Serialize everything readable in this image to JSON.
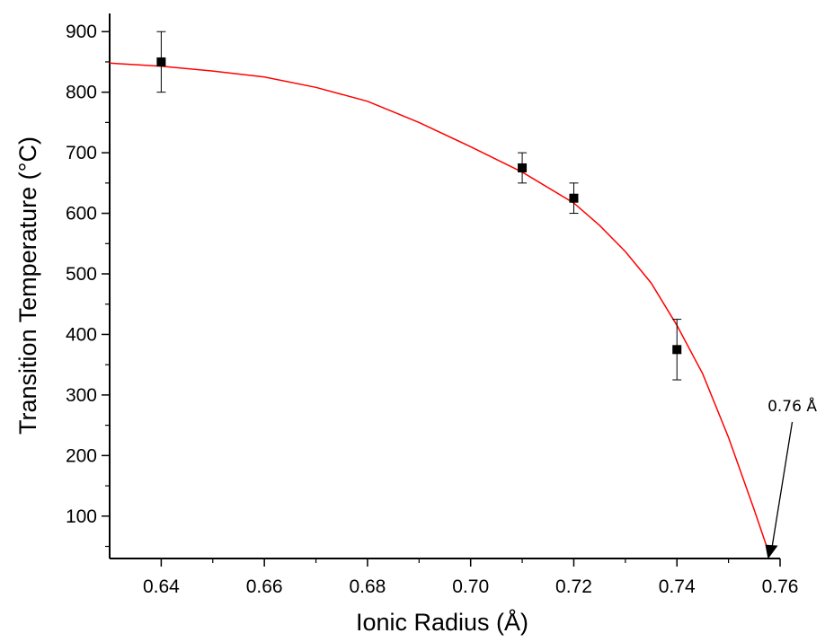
{
  "chart_data": {
    "type": "scatter",
    "title": "",
    "xlabel": "Ionic Radius (Å)",
    "ylabel": "Transition Temperature (°C)",
    "xlim": [
      0.63,
      0.76
    ],
    "ylim": [
      30,
      930
    ],
    "x_ticks": [
      0.64,
      0.66,
      0.68,
      0.7,
      0.72,
      0.74,
      0.76
    ],
    "x_tick_labels": [
      "0.64",
      "0.66",
      "0.68",
      "0.70",
      "0.72",
      "0.74",
      "0.76"
    ],
    "y_ticks": [
      100,
      200,
      300,
      400,
      500,
      600,
      700,
      800,
      900
    ],
    "y_tick_labels": [
      "100",
      "200",
      "300",
      "400",
      "500",
      "600",
      "700",
      "800",
      "900"
    ],
    "grid": false,
    "series": [
      {
        "marker": "square",
        "color": "#000000",
        "points": [
          {
            "x": 0.64,
            "y": 850,
            "err": 50
          },
          {
            "x": 0.71,
            "y": 675,
            "err": 25
          },
          {
            "x": 0.72,
            "y": 625,
            "err": 25
          },
          {
            "x": 0.74,
            "y": 375,
            "err": 50
          }
        ]
      },
      {
        "type": "line",
        "color": "#ff0000",
        "points": [
          {
            "x": 0.63,
            "y": 848
          },
          {
            "x": 0.64,
            "y": 843
          },
          {
            "x": 0.65,
            "y": 835
          },
          {
            "x": 0.66,
            "y": 825
          },
          {
            "x": 0.67,
            "y": 808
          },
          {
            "x": 0.68,
            "y": 785
          },
          {
            "x": 0.69,
            "y": 750
          },
          {
            "x": 0.7,
            "y": 710
          },
          {
            "x": 0.71,
            "y": 668
          },
          {
            "x": 0.72,
            "y": 617
          },
          {
            "x": 0.725,
            "y": 580
          },
          {
            "x": 0.73,
            "y": 537
          },
          {
            "x": 0.735,
            "y": 485
          },
          {
            "x": 0.74,
            "y": 415
          },
          {
            "x": 0.745,
            "y": 335
          },
          {
            "x": 0.75,
            "y": 230
          },
          {
            "x": 0.755,
            "y": 110
          },
          {
            "x": 0.758,
            "y": 35
          }
        ]
      }
    ],
    "annotations": [
      {
        "text": "0.76 Å",
        "x": 0.758,
        "y": 35
      }
    ]
  }
}
